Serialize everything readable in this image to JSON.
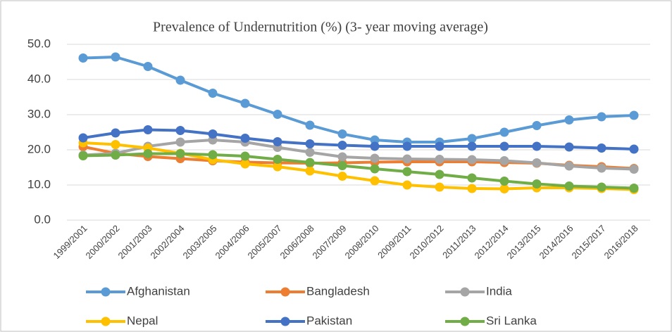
{
  "chart_data": {
    "type": "line",
    "title": "Prevalence of Undernutrition (%) (3- year moving average)",
    "categories": [
      "1999/2001",
      "2000/2002",
      "2001/2003",
      "2002/2004",
      "2003/2005",
      "2004/2006",
      "2005/2007",
      "2006/2008",
      "2007/2009",
      "2008/2010",
      "2009/2011",
      "2010/2012",
      "2011/2013",
      "2012/2014",
      "2013/2015",
      "2014/2016",
      "2015/2017",
      "2016/2018"
    ],
    "series": [
      {
        "name": "Afghanistan",
        "color": "#5b9bd5",
        "values": [
          46.1,
          46.4,
          43.7,
          39.8,
          36.1,
          33.2,
          30.1,
          27.0,
          24.5,
          22.8,
          22.2,
          22.2,
          23.2,
          25.0,
          26.9,
          28.5,
          29.4,
          29.8
        ]
      },
      {
        "name": "Bangladesh",
        "color": "#ed7d31",
        "values": [
          20.9,
          19.0,
          18.1,
          17.5,
          16.9,
          16.5,
          16.3,
          16.2,
          16.3,
          16.5,
          16.6,
          16.6,
          16.6,
          16.4,
          16.2,
          15.6,
          15.2,
          14.7
        ]
      },
      {
        "name": "India",
        "color": "#a5a5a5",
        "values": [
          18.5,
          19.0,
          21.0,
          22.2,
          22.8,
          22.2,
          20.7,
          19.3,
          18.0,
          17.6,
          17.4,
          17.3,
          17.2,
          16.9,
          16.3,
          15.4,
          14.8,
          14.5
        ]
      },
      {
        "name": "Nepal",
        "color": "#ffc000",
        "values": [
          22.0,
          21.5,
          20.5,
          19.0,
          17.2,
          16.0,
          15.2,
          14.0,
          12.5,
          11.2,
          10.0,
          9.4,
          9.0,
          8.9,
          9.2,
          9.2,
          9.0,
          8.7
        ]
      },
      {
        "name": "Pakistan",
        "color": "#4472c4",
        "values": [
          23.4,
          24.8,
          25.7,
          25.5,
          24.5,
          23.3,
          22.3,
          21.7,
          21.3,
          21.0,
          21.0,
          21.0,
          21.0,
          21.0,
          21.0,
          20.8,
          20.5,
          20.2
        ]
      },
      {
        "name": "Sri Lanka",
        "color": "#70ad47",
        "values": [
          18.3,
          18.5,
          18.9,
          18.9,
          18.6,
          18.2,
          17.3,
          16.4,
          15.5,
          14.6,
          13.8,
          13.0,
          12.0,
          11.1,
          10.3,
          9.7,
          9.4,
          9.1
        ]
      }
    ],
    "ylim": [
      0,
      50
    ],
    "yticks": [
      {
        "value": 0,
        "label": "0.0"
      },
      {
        "value": 10,
        "label": "10.0"
      },
      {
        "value": 20,
        "label": "20.0"
      },
      {
        "value": 30,
        "label": "30.0"
      },
      {
        "value": 40,
        "label": "40.0"
      },
      {
        "value": 50,
        "label": "50.0"
      }
    ],
    "grid": true
  }
}
